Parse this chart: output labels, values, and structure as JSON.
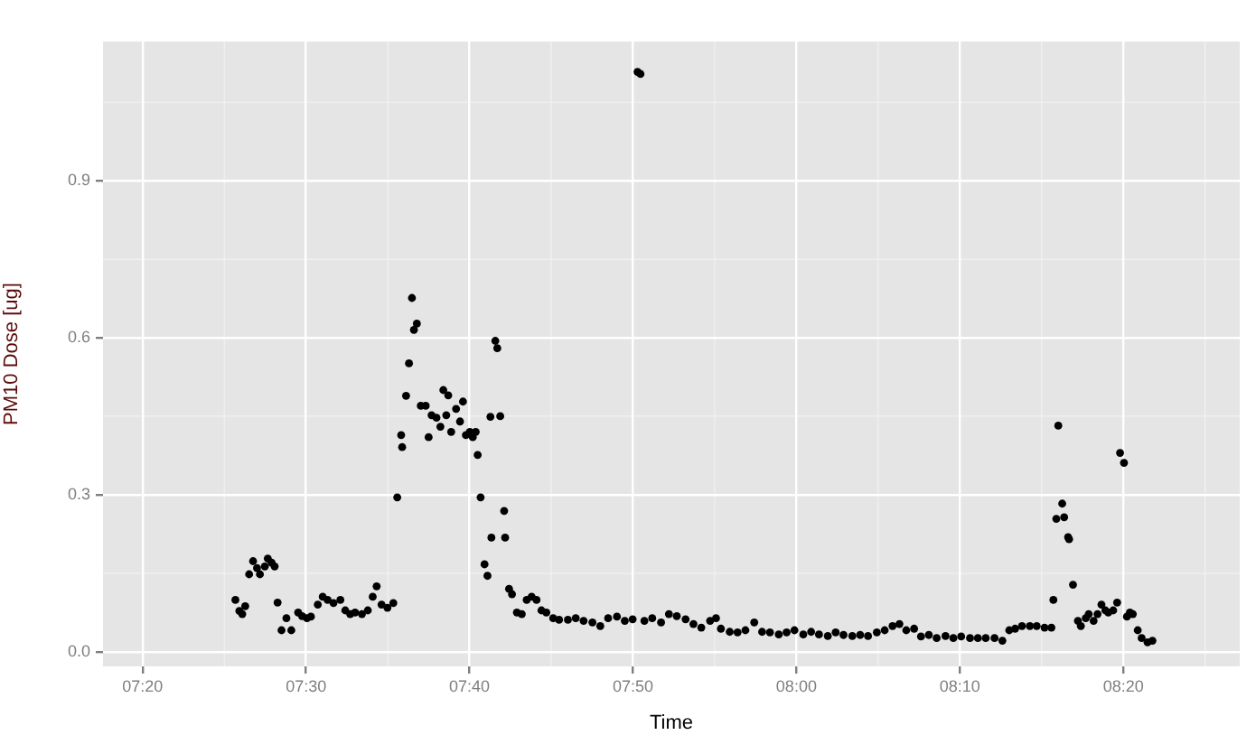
{
  "chart_data": {
    "type": "scatter",
    "xlabel": "Time",
    "ylabel": "PM10 Dose [ug]",
    "marker": "circle",
    "grid": true,
    "legend": false,
    "xlim": [
      7.293,
      8.452
    ],
    "ylim": [
      -0.028,
      1.166
    ],
    "xticks": [
      {
        "value": 7.3333,
        "label": "07:20"
      },
      {
        "value": 7.5,
        "label": "07:30"
      },
      {
        "value": 7.6667,
        "label": "07:40"
      },
      {
        "value": 7.8333,
        "label": "07:50"
      },
      {
        "value": 8,
        "label": "08:00"
      },
      {
        "value": 8.1667,
        "label": "08:10"
      },
      {
        "value": 8.3333,
        "label": "08:20"
      }
    ],
    "yticks": [
      {
        "value": 0,
        "label": "0.0"
      },
      0.3,
      0.6,
      0.9
    ],
    "series": [
      {
        "color": "#000000",
        "x": [
          7.428,
          7.432,
          7.435,
          7.438,
          7.442,
          7.446,
          7.45,
          7.453,
          7.458,
          7.461,
          7.465,
          7.468,
          7.471,
          7.475,
          7.48,
          7.485,
          7.492,
          7.496,
          7.501,
          7.505,
          7.512,
          7.517,
          7.522,
          7.528,
          7.535,
          7.54,
          7.545,
          7.55,
          7.557,
          7.563,
          7.568,
          7.572,
          7.577,
          7.583,
          7.589,
          7.593,
          7.597,
          7.598,
          7.602,
          7.605,
          7.608,
          7.61,
          7.613,
          7.617,
          7.622,
          7.625,
          7.628,
          7.633,
          7.637,
          7.64,
          7.643,
          7.645,
          7.648,
          7.653,
          7.657,
          7.66,
          7.663,
          7.667,
          7.67,
          7.673,
          7.675,
          7.678,
          7.682,
          7.685,
          7.688,
          7.689,
          7.693,
          7.695,
          7.698,
          7.702,
          7.703,
          7.707,
          7.71,
          7.715,
          7.72,
          7.725,
          7.73,
          7.735,
          7.74,
          7.745,
          7.752,
          7.758,
          7.767,
          7.775,
          7.783,
          7.792,
          7.8,
          7.808,
          7.817,
          7.825,
          7.833,
          7.838,
          7.841,
          7.845,
          7.853,
          7.862,
          7.87,
          7.878,
          7.887,
          7.895,
          7.903,
          7.912,
          7.918,
          7.923,
          7.932,
          7.94,
          7.948,
          7.957,
          7.965,
          7.973,
          7.982,
          7.99,
          7.998,
          8.007,
          8.015,
          8.023,
          8.032,
          8.04,
          8.048,
          8.057,
          8.065,
          8.073,
          8.082,
          8.09,
          8.098,
          8.105,
          8.112,
          8.12,
          8.127,
          8.135,
          8.143,
          8.152,
          8.16,
          8.168,
          8.177,
          8.185,
          8.193,
          8.202,
          8.21,
          8.217,
          8.223,
          8.23,
          8.238,
          8.245,
          8.253,
          8.26,
          8.262,
          8.265,
          8.267,
          8.271,
          8.273,
          8.277,
          8.278,
          8.282,
          8.287,
          8.29,
          8.295,
          8.298,
          8.303,
          8.307,
          8.311,
          8.315,
          8.318,
          8.323,
          8.327,
          8.33,
          8.334,
          8.337,
          8.34,
          8.343,
          8.348,
          8.352,
          8.358,
          8.363
        ],
        "values": [
          0.099,
          0.078,
          0.072,
          0.087,
          0.148,
          0.173,
          0.16,
          0.148,
          0.163,
          0.178,
          0.17,
          0.163,
          0.094,
          0.041,
          0.064,
          0.041,
          0.075,
          0.068,
          0.064,
          0.067,
          0.09,
          0.105,
          0.099,
          0.093,
          0.099,
          0.079,
          0.072,
          0.075,
          0.072,
          0.079,
          0.105,
          0.125,
          0.09,
          0.084,
          0.093,
          0.295,
          0.414,
          0.391,
          0.489,
          0.551,
          0.676,
          0.615,
          0.627,
          0.47,
          0.47,
          0.41,
          0.452,
          0.447,
          0.43,
          0.5,
          0.452,
          0.49,
          0.42,
          0.464,
          0.44,
          0.478,
          0.414,
          0.42,
          0.41,
          0.42,
          0.376,
          0.295,
          0.167,
          0.145,
          0.449,
          0.218,
          0.594,
          0.58,
          0.45,
          0.269,
          0.218,
          0.12,
          0.11,
          0.075,
          0.072,
          0.099,
          0.105,
          0.099,
          0.079,
          0.075,
          0.064,
          0.061,
          0.061,
          0.064,
          0.059,
          0.056,
          0.049,
          0.064,
          0.067,
          0.059,
          0.062,
          1.108,
          1.104,
          0.059,
          0.064,
          0.056,
          0.072,
          0.068,
          0.062,
          0.053,
          0.046,
          0.059,
          0.064,
          0.044,
          0.038,
          0.037,
          0.041,
          0.056,
          0.038,
          0.037,
          0.033,
          0.037,
          0.041,
          0.033,
          0.038,
          0.033,
          0.03,
          0.037,
          0.032,
          0.03,
          0.032,
          0.03,
          0.037,
          0.041,
          0.049,
          0.053,
          0.041,
          0.044,
          0.029,
          0.032,
          0.026,
          0.03,
          0.026,
          0.029,
          0.026,
          0.026,
          0.026,
          0.026,
          0.021,
          0.041,
          0.044,
          0.049,
          0.049,
          0.049,
          0.046,
          0.046,
          0.099,
          0.254,
          0.432,
          0.283,
          0.257,
          0.219,
          0.215,
          0.128,
          0.059,
          0.049,
          0.064,
          0.072,
          0.059,
          0.072,
          0.09,
          0.079,
          0.075,
          0.079,
          0.094,
          0.38,
          0.361,
          0.067,
          0.075,
          0.072,
          0.041,
          0.026,
          0.018,
          0.021
        ]
      }
    ]
  }
}
